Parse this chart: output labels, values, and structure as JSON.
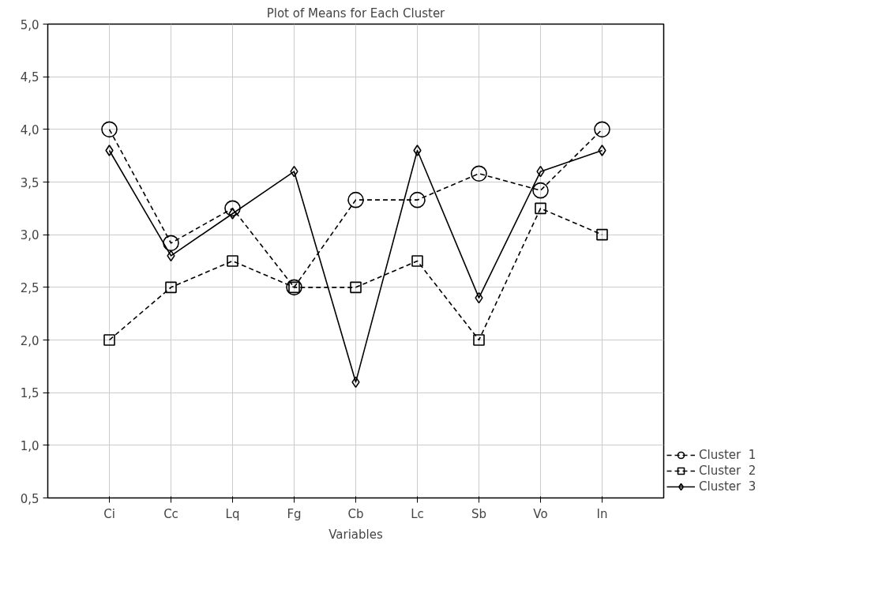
{
  "chart_data": {
    "type": "line",
    "title": "Plot of Means for Each Cluster",
    "xlabel": "Variables",
    "categories": [
      "Ci",
      "Cc",
      "Lq",
      "Fg",
      "Cb",
      "Lc",
      "Sb",
      "Vo",
      "In"
    ],
    "series": [
      {
        "name": "Cluster  1",
        "color": "#000000",
        "marker": "circle",
        "line_style": "dashed",
        "values": [
          4.0,
          2.92,
          3.25,
          2.5,
          3.33,
          3.33,
          3.58,
          3.42,
          4.0
        ]
      },
      {
        "name": "Cluster  2",
        "color": "#000000",
        "marker": "square",
        "line_style": "dashed",
        "values": [
          2.0,
          2.5,
          2.75,
          2.5,
          2.5,
          2.75,
          2.0,
          3.25,
          3.0
        ]
      },
      {
        "name": "Cluster  3",
        "color": "#000000",
        "marker": "diamond",
        "line_style": "solid",
        "values": [
          3.8,
          2.8,
          3.2,
          3.6,
          1.6,
          3.8,
          2.4,
          3.6,
          3.8
        ]
      }
    ],
    "ylim": [
      0.5,
      5.0
    ],
    "yticks": [
      {
        "value": 0.5,
        "label": "0,5"
      },
      {
        "value": 1.0,
        "label": "1,0"
      },
      {
        "value": 1.5,
        "label": "1,5"
      },
      {
        "value": 2.0,
        "label": "2,0"
      },
      {
        "value": 2.5,
        "label": "2,5"
      },
      {
        "value": 3.0,
        "label": "3,0"
      },
      {
        "value": 3.5,
        "label": "3,5"
      },
      {
        "value": 4.0,
        "label": "4,0"
      },
      {
        "value": 4.5,
        "label": "4,5"
      },
      {
        "value": 5.0,
        "label": "5,0"
      }
    ],
    "grid": true,
    "legend": "bottom right"
  }
}
